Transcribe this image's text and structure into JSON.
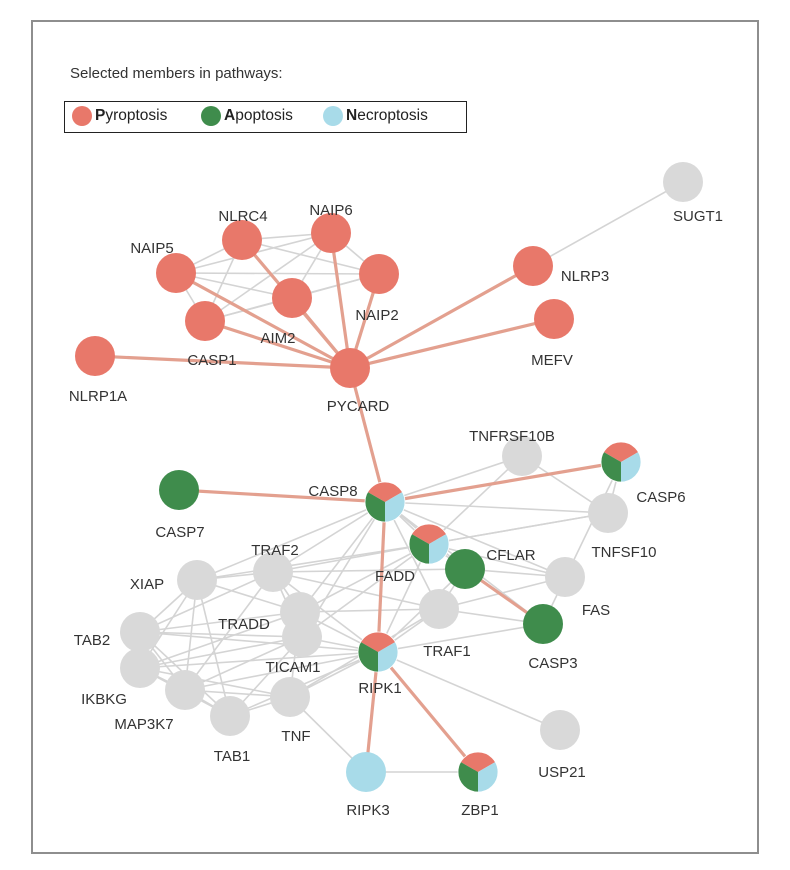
{
  "legend": {
    "title": "Selected members in pathways:",
    "items": [
      {
        "initial": "P",
        "rest": "yroptosis",
        "color": "#e8786a"
      },
      {
        "initial": "A",
        "rest": "poptosis",
        "color": "#3f8c4c"
      },
      {
        "initial": "N",
        "rest": "ecroptosis",
        "color": "#a8dbe9"
      }
    ]
  },
  "colors": {
    "pyroptosis": "#e8786a",
    "apoptosis": "#3f8c4c",
    "necroptosis": "#a8dbe9",
    "other": "#d9d9d9",
    "edge_highlight": "#e3a08f",
    "edge_normal": "#d4d4d4"
  },
  "nodes": [
    {
      "id": "SUGT1",
      "label": "SUGT1",
      "type": "other"
    },
    {
      "id": "NLRC4",
      "label": "NLRC4",
      "type": "pyroptosis"
    },
    {
      "id": "NAIP6",
      "label": "NAIP6",
      "type": "pyroptosis"
    },
    {
      "id": "NAIP5",
      "label": "NAIP5",
      "type": "pyroptosis"
    },
    {
      "id": "NAIP2",
      "label": "NAIP2",
      "type": "pyroptosis"
    },
    {
      "id": "AIM2",
      "label": "AIM2",
      "type": "pyroptosis"
    },
    {
      "id": "CASP1",
      "label": "CASP1",
      "type": "pyroptosis"
    },
    {
      "id": "NLRP3",
      "label": "NLRP3",
      "type": "pyroptosis"
    },
    {
      "id": "MEFV",
      "label": "MEFV",
      "type": "pyroptosis"
    },
    {
      "id": "NLRP1A",
      "label": "NLRP1A",
      "type": "pyroptosis"
    },
    {
      "id": "PYCARD",
      "label": "PYCARD",
      "type": "pyroptosis"
    },
    {
      "id": "TNFRSF10B",
      "label": "TNFRSF10B",
      "type": "other"
    },
    {
      "id": "CASP6",
      "label": "CASP6",
      "type": "mixed"
    },
    {
      "id": "CASP8",
      "label": "CASP8",
      "type": "mixed"
    },
    {
      "id": "CASP7",
      "label": "CASP7",
      "type": "apoptosis"
    },
    {
      "id": "TNFSF10",
      "label": "TNFSF10",
      "type": "other"
    },
    {
      "id": "FADD",
      "label": "FADD",
      "type": "mixed"
    },
    {
      "id": "CFLAR",
      "label": "CFLAR",
      "type": "apoptosis"
    },
    {
      "id": "TRAF2",
      "label": "TRAF2",
      "type": "other"
    },
    {
      "id": "XIAP",
      "label": "XIAP",
      "type": "other"
    },
    {
      "id": "FAS",
      "label": "FAS",
      "type": "other"
    },
    {
      "id": "TRADD",
      "label": "TRADD",
      "type": "other"
    },
    {
      "id": "TAB2",
      "label": "TAB2",
      "type": "other"
    },
    {
      "id": "TRAF1",
      "label": "TRAF1",
      "type": "other"
    },
    {
      "id": "CASP3",
      "label": "CASP3",
      "type": "apoptosis"
    },
    {
      "id": "TICAM1",
      "label": "TICAM1",
      "type": "other"
    },
    {
      "id": "RIPK1",
      "label": "RIPK1",
      "type": "mixed"
    },
    {
      "id": "IKBKG",
      "label": "IKBKG",
      "type": "other"
    },
    {
      "id": "MAP3K7",
      "label": "MAP3K7",
      "type": "other"
    },
    {
      "id": "TNF",
      "label": "TNF",
      "type": "other"
    },
    {
      "id": "TAB1",
      "label": "TAB1",
      "type": "other"
    },
    {
      "id": "USP21",
      "label": "USP21",
      "type": "other"
    },
    {
      "id": "RIPK3",
      "label": "RIPK3",
      "type": "necroptosis"
    },
    {
      "id": "ZBP1",
      "label": "ZBP1",
      "type": "mixed"
    }
  ],
  "edges": [
    [
      "NAIP5",
      "PYCARD",
      1
    ],
    [
      "NLRC4",
      "PYCARD",
      1
    ],
    [
      "NAIP6",
      "PYCARD",
      1
    ],
    [
      "NAIP2",
      "PYCARD",
      1
    ],
    [
      "AIM2",
      "PYCARD",
      1
    ],
    [
      "CASP1",
      "PYCARD",
      1
    ],
    [
      "NLRP1A",
      "PYCARD",
      1
    ],
    [
      "NLRP3",
      "PYCARD",
      1
    ],
    [
      "MEFV",
      "PYCARD",
      1
    ],
    [
      "PYCARD",
      "CASP8",
      1
    ],
    [
      "CASP8",
      "CASP7",
      1
    ],
    [
      "CASP8",
      "CASP6",
      1
    ],
    [
      "CASP8",
      "RIPK1",
      1
    ],
    [
      "RIPK1",
      "RIPK3",
      1
    ],
    [
      "RIPK1",
      "ZBP1",
      1
    ],
    [
      "CFLAR",
      "CASP3",
      1
    ],
    [
      "NLRC4",
      "NAIP5",
      0
    ],
    [
      "NLRC4",
      "NAIP6",
      0
    ],
    [
      "NLRC4",
      "NAIP2",
      0
    ],
    [
      "NLRC4",
      "AIM2",
      0
    ],
    [
      "NLRC4",
      "CASP1",
      0
    ],
    [
      "NAIP6",
      "NAIP5",
      0
    ],
    [
      "NAIP6",
      "NAIP2",
      0
    ],
    [
      "NAIP6",
      "AIM2",
      0
    ],
    [
      "NAIP5",
      "NAIP2",
      0
    ],
    [
      "NAIP5",
      "CASP1",
      0
    ],
    [
      "NAIP5",
      "AIM2",
      0
    ],
    [
      "NAIP2",
      "AIM2",
      0
    ],
    [
      "NAIP2",
      "CASP1",
      0
    ],
    [
      "AIM2",
      "CASP1",
      0
    ],
    [
      "NAIP6",
      "CASP1",
      0
    ],
    [
      "NLRP3",
      "SUGT1",
      0
    ],
    [
      "CASP8",
      "TNFRSF10B",
      0
    ],
    [
      "CASP8",
      "TNFSF10",
      0
    ],
    [
      "CASP8",
      "FADD",
      0
    ],
    [
      "CASP8",
      "CFLAR",
      0
    ],
    [
      "CASP8",
      "TRAF2",
      0
    ],
    [
      "CASP8",
      "XIAP",
      0
    ],
    [
      "CASP8",
      "TRADD",
      0
    ],
    [
      "CASP8",
      "FAS",
      0
    ],
    [
      "CASP8",
      "TRAF1",
      0
    ],
    [
      "CASP8",
      "CASP3",
      0
    ],
    [
      "CASP8",
      "TICAM1",
      0
    ],
    [
      "TNFRSF10B",
      "TNFSF10",
      0
    ],
    [
      "TNFRSF10B",
      "FADD",
      0
    ],
    [
      "TNFSF10",
      "FADD",
      0
    ],
    [
      "CASP6",
      "TNFSF10",
      0
    ],
    [
      "CASP6",
      "CASP3",
      0
    ],
    [
      "FADD",
      "FAS",
      0
    ],
    [
      "FADD",
      "CFLAR",
      0
    ],
    [
      "FADD",
      "RIPK1",
      0
    ],
    [
      "FADD",
      "TRADD",
      0
    ],
    [
      "FADD",
      "TRAF2",
      0
    ],
    [
      "FADD",
      "XIAP",
      0
    ],
    [
      "FADD",
      "TICAM1",
      0
    ],
    [
      "FADD",
      "TNFSF10",
      0
    ],
    [
      "CFLAR",
      "FAS",
      0
    ],
    [
      "CFLAR",
      "TRAF1",
      0
    ],
    [
      "CFLAR",
      "RIPK1",
      0
    ],
    [
      "CFLAR",
      "TRAF2",
      0
    ],
    [
      "XIAP",
      "TRAF2",
      0
    ],
    [
      "XIAP",
      "TAB2",
      0
    ],
    [
      "XIAP",
      "IKBKG",
      0
    ],
    [
      "XIAP",
      "MAP3K7",
      0
    ],
    [
      "XIAP",
      "TAB1",
      0
    ],
    [
      "XIAP",
      "TRADD",
      0
    ],
    [
      "TRAF2",
      "TRADD",
      0
    ],
    [
      "TRAF2",
      "TRAF1",
      0
    ],
    [
      "TRAF2",
      "TICAM1",
      0
    ],
    [
      "TRAF2",
      "RIPK1",
      0
    ],
    [
      "TRAF2",
      "TAB2",
      0
    ],
    [
      "TRAF2",
      "MAP3K7",
      0
    ],
    [
      "TRADD",
      "TICAM1",
      0
    ],
    [
      "TRADD",
      "RIPK1",
      0
    ],
    [
      "TRADD",
      "TRAF1",
      0
    ],
    [
      "TRADD",
      "TAB2",
      0
    ],
    [
      "TRADD",
      "IKBKG",
      0
    ],
    [
      "TRADD",
      "TNF",
      0
    ],
    [
      "TICAM1",
      "RIPK1",
      0
    ],
    [
      "TICAM1",
      "TAB1",
      0
    ],
    [
      "TICAM1",
      "MAP3K7",
      0
    ],
    [
      "TICAM1",
      "IKBKG",
      0
    ],
    [
      "TICAM1",
      "TAB2",
      0
    ],
    [
      "TAB2",
      "IKBKG",
      0
    ],
    [
      "TAB2",
      "MAP3K7",
      0
    ],
    [
      "TAB2",
      "TAB1",
      0
    ],
    [
      "IKBKG",
      "MAP3K7",
      0
    ],
    [
      "IKBKG",
      "TAB1",
      0
    ],
    [
      "IKBKG",
      "TNF",
      0
    ],
    [
      "MAP3K7",
      "TAB1",
      0
    ],
    [
      "MAP3K7",
      "TNF",
      0
    ],
    [
      "TAB1",
      "TNF",
      0
    ],
    [
      "TNF",
      "RIPK1",
      0
    ],
    [
      "TNF",
      "TRAF1",
      0
    ],
    [
      "RIPK1",
      "TRAF1",
      0
    ],
    [
      "RIPK1",
      "USP21",
      0
    ],
    [
      "RIPK1",
      "MAP3K7",
      0
    ],
    [
      "RIPK1",
      "IKBKG",
      0
    ],
    [
      "RIPK1",
      "TAB1",
      0
    ],
    [
      "RIPK1",
      "TAB2",
      0
    ],
    [
      "RIPK3",
      "ZBP1",
      0
    ],
    [
      "RIPK3",
      "TNF",
      0
    ],
    [
      "FAS",
      "TRAF1",
      0
    ],
    [
      "TRAF1",
      "CASP3",
      0
    ],
    [
      "CASP3",
      "RIPK1",
      0
    ]
  ]
}
